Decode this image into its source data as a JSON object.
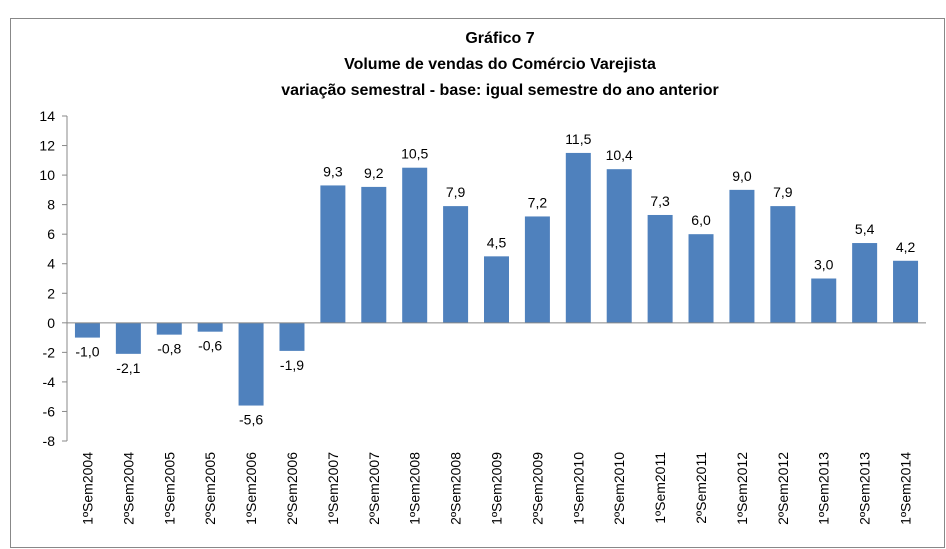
{
  "chart_data": {
    "type": "bar",
    "title": [
      "Gráfico 7",
      "Volume de vendas do Comércio Varejista",
      "variação semestral - base: igual semestre do ano anterior"
    ],
    "categories": [
      "1ºSem2004",
      "2ºSem2004",
      "1ºSem2005",
      "2ºSem2005",
      "1ºSem2006",
      "2ºSem2006",
      "1ºSem2007",
      "2ºSem2007",
      "1ºSem2008",
      "2ºSem2008",
      "1ºSem2009",
      "2ºSem2009",
      "1ºSem2010",
      "2ºSem2010",
      "1ºSem2011",
      "2ºSem2011",
      "1ºSem2012",
      "2ºSem2012",
      "1ºSem2013",
      "2ºSem2013",
      "1ºSem2014"
    ],
    "values": [
      -1.0,
      -2.1,
      -0.8,
      -0.6,
      -5.6,
      -1.9,
      9.3,
      9.2,
      10.5,
      7.9,
      4.5,
      7.2,
      11.5,
      10.4,
      7.3,
      6.0,
      9.0,
      7.9,
      3.0,
      5.4,
      4.2
    ],
    "value_labels": [
      "-1,0",
      "-2,1",
      "-0,8",
      "-0,6",
      "-5,6",
      "-1,9",
      "9,3",
      "9,2",
      "10,5",
      "7,9",
      "4,5",
      "7,2",
      "11,5",
      "10,4",
      "7,3",
      "6,0",
      "9,0",
      "7,9",
      "3,0",
      "5,4",
      "4,2"
    ],
    "color": "#4f81bd",
    "ylim": [
      -8,
      14
    ],
    "yticks": [
      -8,
      -6,
      -4,
      -2,
      0,
      2,
      4,
      6,
      8,
      10,
      12,
      14
    ],
    "grid": false
  }
}
